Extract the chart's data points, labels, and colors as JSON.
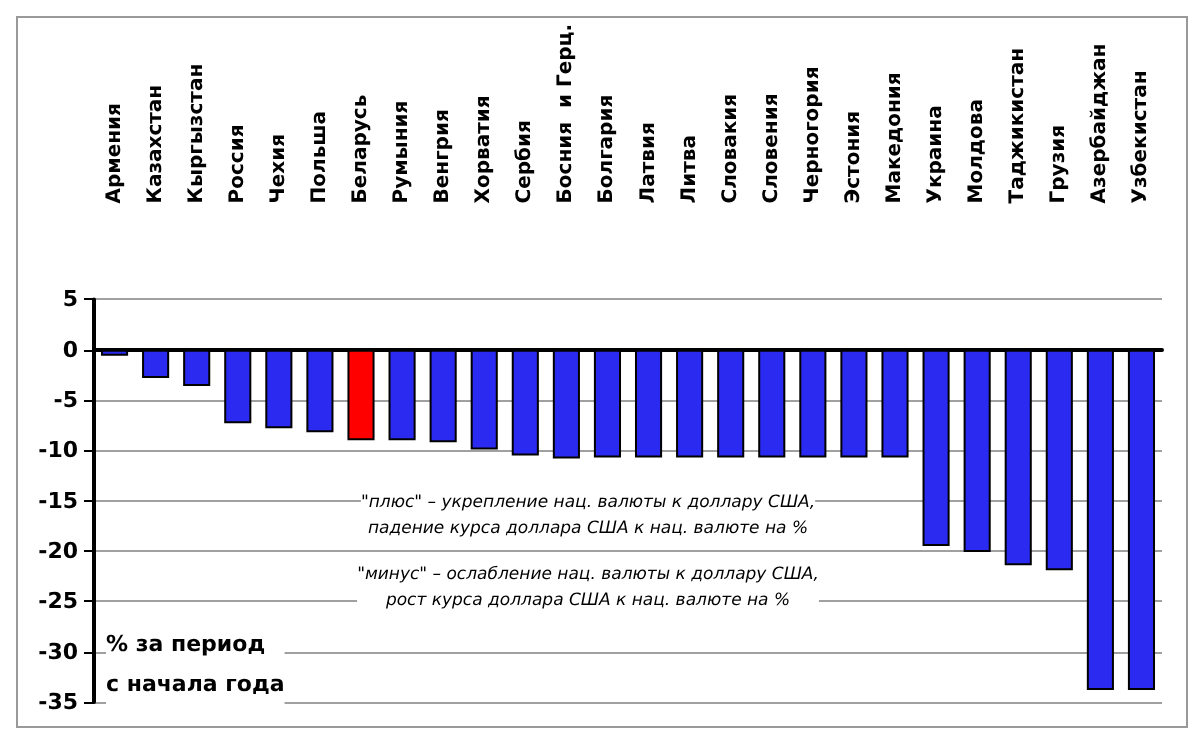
{
  "chart_data": {
    "type": "bar",
    "categories": [
      "Армения",
      "Казахстан",
      "Кыргызстан",
      "Россия",
      "Чехия",
      "Польша",
      "Беларусь",
      "Румыния",
      "Венгрия",
      "Хорватия",
      "Сербия",
      "Босния  и Герц.",
      "Болгария",
      "Латвия",
      "Литва",
      "Словакия",
      "Словения",
      "Черногория",
      "Эстония",
      "Македония",
      "Украина",
      "Молдова",
      "Таджикистан",
      "Грузия",
      "Азербайджан",
      "Узбекистан"
    ],
    "values": [
      -0.6,
      -2.8,
      -3.6,
      -7.3,
      -7.8,
      -8.2,
      -9.0,
      -9.0,
      -9.2,
      -9.9,
      -10.5,
      -10.8,
      -10.7,
      -10.7,
      -10.7,
      -10.7,
      -10.7,
      -10.7,
      -10.7,
      -10.7,
      -19.5,
      -20.1,
      -21.4,
      -21.9,
      -33.8,
      -33.8
    ],
    "colors": [
      "#2a2af0",
      "#2a2af0",
      "#2a2af0",
      "#2a2af0",
      "#2a2af0",
      "#2a2af0",
      "#ff0000",
      "#2a2af0",
      "#2a2af0",
      "#2a2af0",
      "#2a2af0",
      "#2a2af0",
      "#2a2af0",
      "#2a2af0",
      "#2a2af0",
      "#2a2af0",
      "#2a2af0",
      "#2a2af0",
      "#2a2af0",
      "#2a2af0",
      "#2a2af0",
      "#2a2af0",
      "#2a2af0",
      "#2a2af0",
      "#2a2af0",
      "#2a2af0"
    ],
    "ylim": [
      -35,
      5
    ],
    "yticks": [
      -35,
      -30,
      -25,
      -20,
      -15,
      -10,
      -5,
      0,
      5
    ],
    "grid": "y",
    "annotations": [
      "\"плюс\" – укрепление нац. валюты к доллару США,\nпадение курса доллара США к нац. валюте на %",
      "\"минус\" – ослабление нац. валюты к доллару США,\nрост курса доллара США к нац. валюте на %",
      "% за период\nс начала года"
    ]
  }
}
